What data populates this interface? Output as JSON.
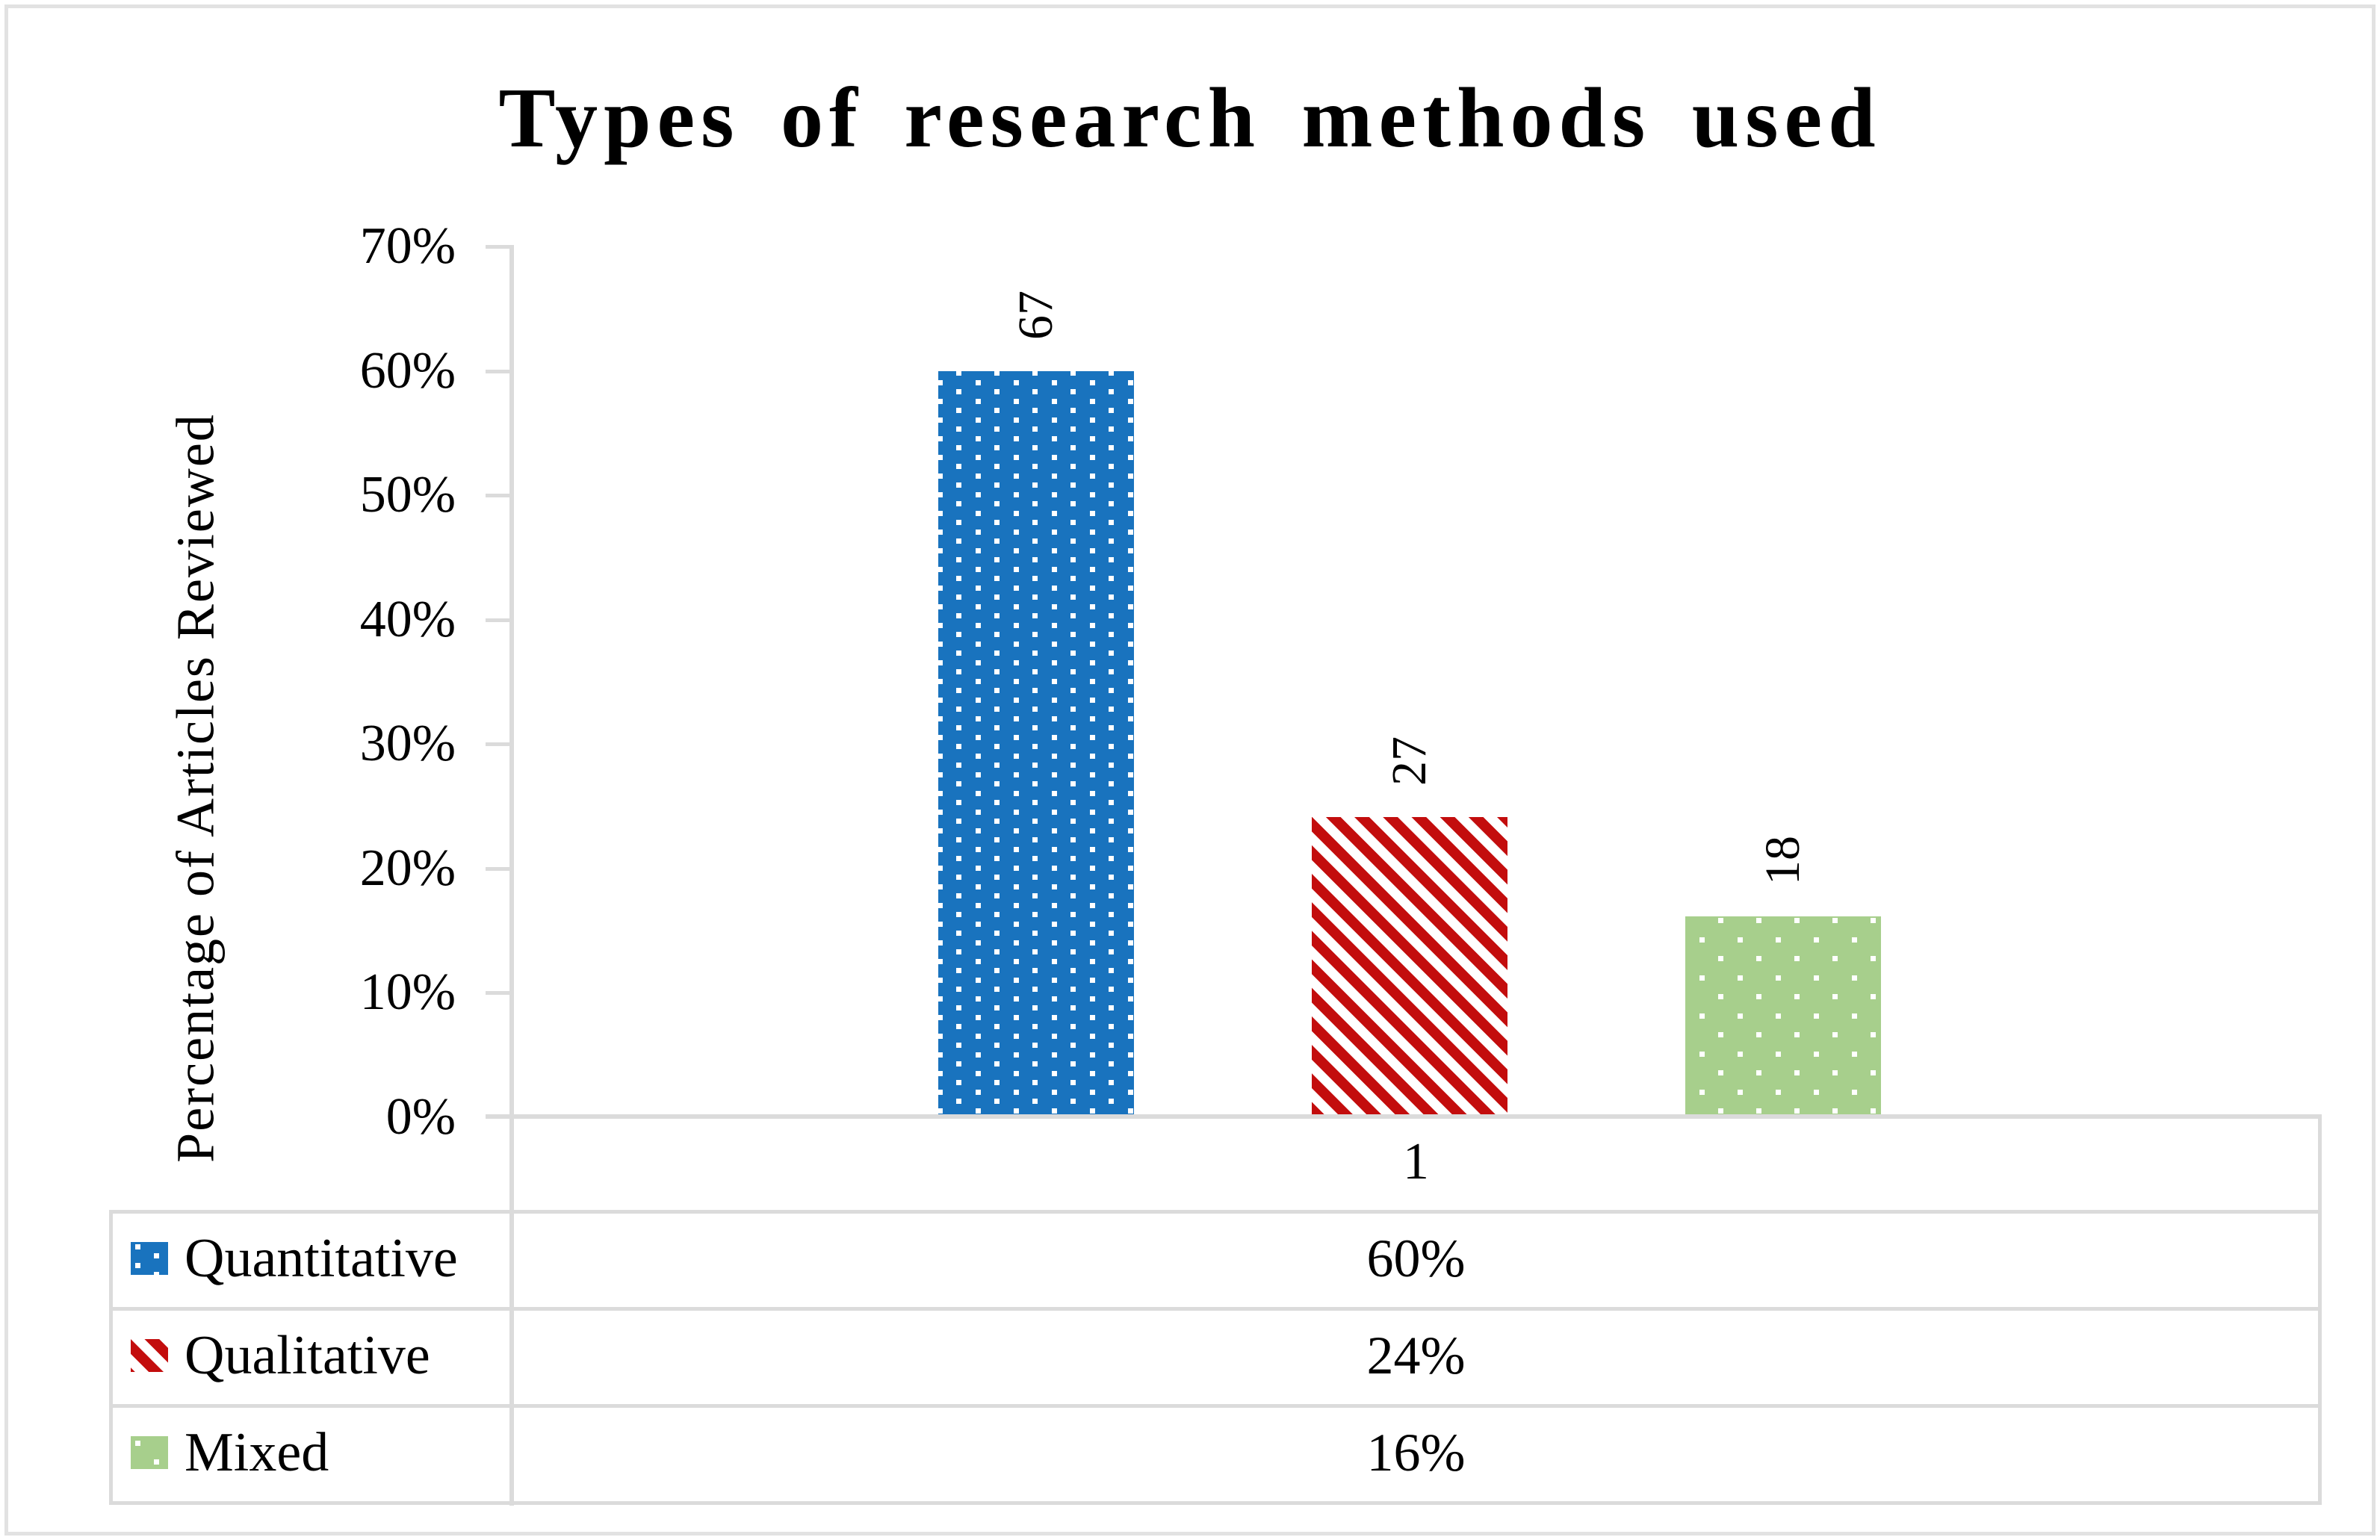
{
  "figure": {
    "background": "#FFFFFF",
    "border_color": "#E2E2E2",
    "axis_line_color": "#DBDBDB"
  },
  "chart_data": {
    "type": "bar",
    "title": "Types of research methods used",
    "ylabel": "Percentage of Articles Reviewed",
    "xlabel": "",
    "categories": [
      "1"
    ],
    "series": [
      {
        "name": "Quantitative",
        "values": [
          60
        ],
        "display_value": "60%",
        "count_label": "67",
        "color": "#1973BE",
        "pattern": "white-dots"
      },
      {
        "name": "Qualitative",
        "values": [
          24
        ],
        "display_value": "24%",
        "count_label": "27",
        "color": "#C30D0D",
        "pattern": "white-diagonal-stripes"
      },
      {
        "name": "Mixed",
        "values": [
          16
        ],
        "display_value": "16%",
        "count_label": "18",
        "color": "#A7CF8C",
        "pattern": "white-dots"
      }
    ],
    "ylim": [
      0,
      70
    ],
    "ytick_step": 10,
    "yticks": [
      "70%",
      "60%",
      "50%",
      "40%",
      "30%",
      "20%",
      "10%",
      "0%"
    ],
    "grid": false,
    "legend_position": "data-table-left-column",
    "data_labels_rotated": true
  }
}
